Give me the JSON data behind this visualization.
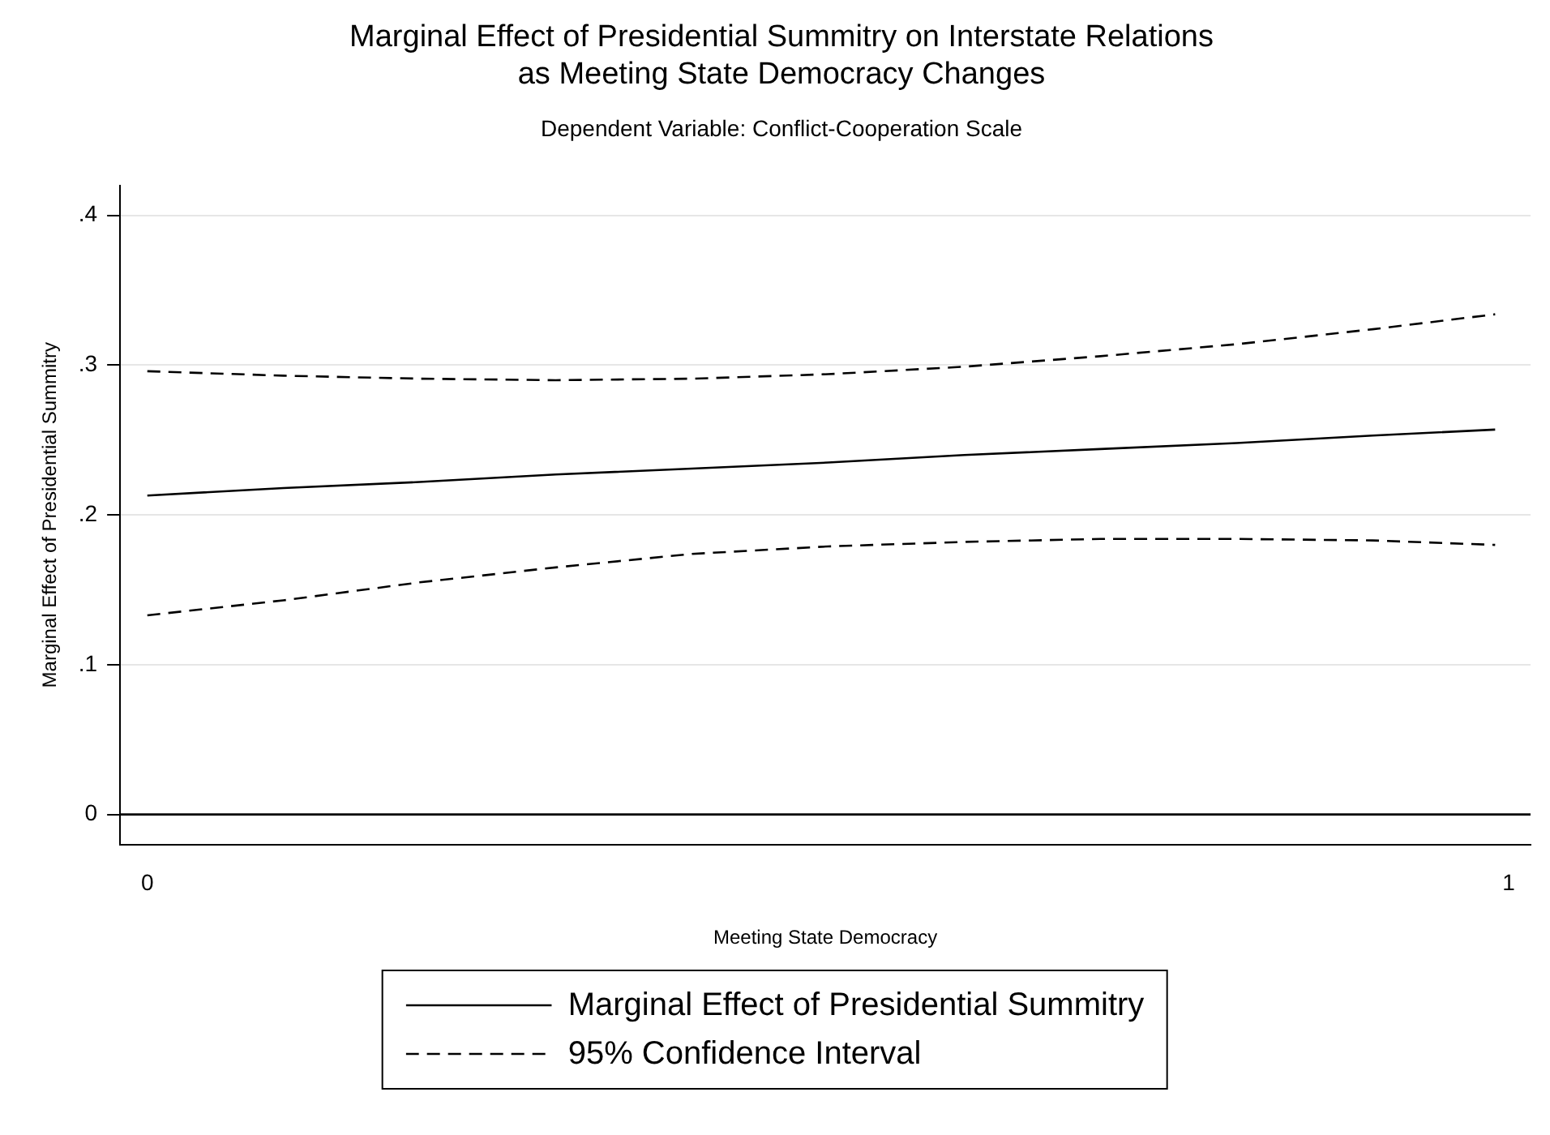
{
  "chart_data": {
    "type": "line",
    "title": "Marginal Effect of Presidential Summitry on Interstate Relations\nas Meeting State Democracy Changes",
    "subtitle": "Dependent Variable: Conflict-Cooperation Scale",
    "xlabel": "Meeting State Democracy",
    "ylabel": "Marginal Effect of Presidential Summitry",
    "x": [
      0,
      0.1,
      0.2,
      0.3,
      0.4,
      0.5,
      0.6,
      0.7,
      0.8,
      0.9,
      0.99
    ],
    "series": [
      {
        "name": "Marginal Effect of Presidential Summitry",
        "color": "#000000",
        "line_style": "solid",
        "values": [
          0.213,
          0.218,
          0.222,
          0.227,
          0.231,
          0.235,
          0.24,
          0.244,
          0.248,
          0.253,
          0.257
        ]
      },
      {
        "name": "95% Confidence Interval",
        "color": "#000000",
        "line_style": "dashed",
        "values": [
          0.296,
          0.293,
          0.291,
          0.29,
          0.291,
          0.294,
          0.299,
          0.306,
          0.314,
          0.324,
          0.334
        ]
      },
      {
        "color": "#000000",
        "line_style": "dashed",
        "values": [
          0.133,
          0.143,
          0.155,
          0.165,
          0.174,
          0.179,
          0.182,
          0.184,
          0.184,
          0.183,
          0.18
        ]
      }
    ],
    "xlim": [
      -0.02,
      1.016
    ],
    "xticks": [
      0,
      1
    ],
    "ylim": [
      -0.02,
      0.42
    ],
    "yticks": [
      0,
      {
        "value": 0.1,
        "label": ".1"
      },
      {
        "value": 0.2,
        "label": ".2"
      },
      {
        "value": 0.3,
        "label": ".3"
      },
      {
        "value": 0.4,
        "label": ".4"
      }
    ],
    "ref_lines": [
      {
        "axis": "y",
        "value": 0,
        "color": "#000000"
      }
    ],
    "grid": "y",
    "legend": "bottom",
    "marker": "none"
  }
}
